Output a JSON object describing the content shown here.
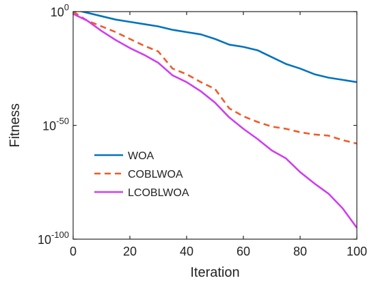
{
  "chart_data": {
    "type": "line",
    "title": "",
    "xlabel": "Iteration",
    "ylabel": "Fitness",
    "xlim": [
      0,
      100
    ],
    "ylim_log10": [
      -100,
      0
    ],
    "yscale": "log",
    "xticks": [
      "0",
      "20",
      "40",
      "60",
      "80",
      "100"
    ],
    "yticks": [
      {
        "base": "10",
        "exp": "0",
        "log10": 0
      },
      {
        "base": "10",
        "exp": "-50",
        "log10": -50
      },
      {
        "base": "10",
        "exp": "-100",
        "log10": -100
      }
    ],
    "grid": false,
    "legend_position": "lower-left",
    "series": [
      {
        "name": "WOA",
        "color": "#0072BD",
        "dash": "solid",
        "x": [
          0,
          5,
          10,
          15,
          20,
          25,
          30,
          35,
          40,
          45,
          50,
          55,
          60,
          65,
          70,
          75,
          80,
          85,
          90,
          95,
          100
        ],
        "log10_y": [
          1,
          -0.5,
          -2,
          -3.5,
          -4.5,
          -5.5,
          -6.5,
          -8,
          -9,
          -10,
          -12,
          -14.5,
          -15.5,
          -17,
          -20,
          -23,
          -25,
          -27.5,
          -29,
          -30,
          -31
        ]
      },
      {
        "name": "COBLWOA",
        "color": "#F05A28",
        "dash": "dashed",
        "x": [
          0,
          5,
          10,
          15,
          20,
          25,
          30,
          35,
          40,
          45,
          50,
          55,
          60,
          65,
          70,
          75,
          80,
          85,
          90,
          95,
          100
        ],
        "log10_y": [
          0,
          -4,
          -6.5,
          -9,
          -12,
          -15,
          -17.5,
          -25,
          -27.5,
          -31,
          -34,
          -42.5,
          -46,
          -48.5,
          -50.5,
          -51.5,
          -53,
          -54,
          -54.5,
          -56.5,
          -58
        ]
      },
      {
        "name": "LCOBLWOA",
        "color": "#D13CF0",
        "dash": "solid",
        "x": [
          0,
          5,
          10,
          15,
          20,
          25,
          30,
          35,
          40,
          45,
          50,
          55,
          60,
          65,
          70,
          75,
          80,
          85,
          90,
          95,
          100
        ],
        "log10_y": [
          -1,
          -4,
          -8.5,
          -12.5,
          -16,
          -19,
          -22.5,
          -28,
          -31,
          -35,
          -40,
          -46.5,
          -51.5,
          -56,
          -61,
          -64.5,
          -70.5,
          -75.5,
          -80,
          -86.5,
          -95
        ]
      }
    ]
  }
}
